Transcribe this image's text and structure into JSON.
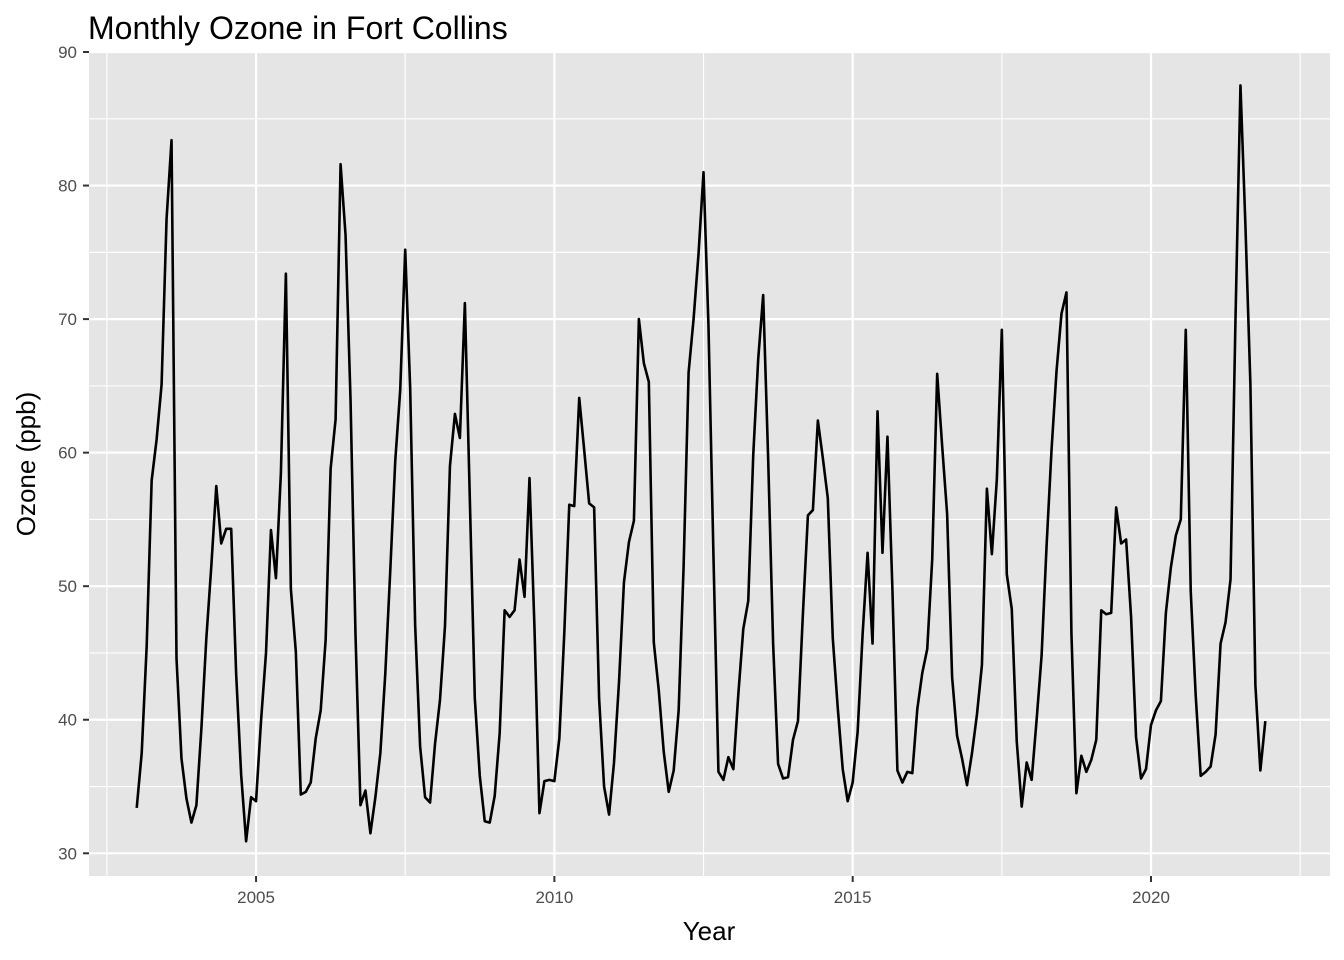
{
  "chart_data": {
    "type": "line",
    "title": "Monthly Ozone in Fort Collins",
    "xlabel": "Year",
    "ylabel": "Ozone (ppb)",
    "xlim": [
      2002.2,
      2023.0
    ],
    "ylim": [
      28.3,
      90.0
    ],
    "x_ticks": [
      2005,
      2010,
      2015,
      2020
    ],
    "y_ticks": [
      30,
      40,
      50,
      60,
      70,
      80,
      90
    ],
    "grid": true,
    "panel_color": "#e5e5e5",
    "line_color": "#000000",
    "series": [
      {
        "x_start": 2003.0,
        "x_step": 0.08333,
        "values": [
          33.4,
          37.5,
          45.5,
          57.9,
          61.0,
          65.1,
          77.5,
          83.4,
          44.6,
          37.1,
          34.1,
          32.3,
          33.6,
          39.3,
          46.1,
          51.5,
          57.5,
          53.2,
          54.3,
          54.3,
          43.4,
          35.9,
          30.9,
          34.2,
          33.9,
          39.9,
          45.0,
          54.2,
          50.6,
          58.5,
          73.4,
          49.8,
          45.1,
          34.4,
          34.6,
          35.3,
          38.6,
          40.7,
          46.0,
          58.8,
          62.5,
          81.6,
          76.3,
          64.0,
          46.4,
          33.6,
          34.7,
          31.5,
          34.2,
          37.5,
          43.5,
          51.2,
          59.4,
          64.7,
          75.2,
          64.8,
          47.1,
          38.0,
          34.2,
          33.8,
          38.2,
          41.5,
          47.0,
          59.0,
          62.9,
          61.1,
          71.2,
          56.5,
          41.6,
          35.8,
          32.4,
          32.3,
          34.3,
          39.0,
          48.2,
          47.7,
          48.2,
          52.0,
          49.2,
          58.1,
          46.9,
          33.0,
          35.4,
          35.5,
          35.4,
          38.6,
          46.5,
          56.1,
          56.0,
          64.1,
          60.2,
          56.2,
          55.9,
          41.6,
          35.0,
          32.9,
          36.8,
          42.8,
          50.3,
          53.3,
          54.9,
          70.0,
          66.7,
          65.3,
          45.8,
          42.2,
          37.6,
          34.6,
          36.2,
          40.7,
          51.5,
          66.0,
          70.0,
          74.9,
          81.0,
          69.5,
          52.3,
          36.1,
          35.5,
          37.2,
          36.3,
          41.9,
          46.8,
          48.9,
          59.8,
          67.0,
          71.8,
          59.6,
          45.7,
          36.7,
          35.6,
          35.7,
          38.5,
          39.9,
          48.0,
          55.3,
          55.7,
          62.4,
          59.6,
          56.6,
          46.1,
          40.9,
          36.3,
          33.9,
          35.3,
          39.1,
          46.4,
          52.5,
          45.7,
          63.1,
          52.5,
          61.2,
          49.7,
          36.2,
          35.3,
          36.1,
          36.0,
          40.8,
          43.5,
          45.3,
          52.0,
          65.9,
          60.5,
          55.4,
          43.2,
          38.8,
          37.1,
          35.1,
          37.5,
          40.4,
          44.1,
          57.3,
          52.4,
          58.0,
          69.2,
          50.9,
          48.3,
          38.4,
          33.5,
          36.8,
          35.5,
          40.0,
          44.8,
          53.0,
          60.2,
          66.1,
          70.4,
          72.0,
          46.5,
          34.5,
          37.3,
          36.1,
          37.0,
          38.5,
          48.2,
          47.9,
          48.0,
          55.9,
          53.2,
          53.5,
          47.7,
          38.7,
          35.6,
          36.3,
          39.6,
          40.7,
          41.4,
          48.0,
          51.4,
          53.8,
          55.0,
          69.2,
          49.6,
          41.8,
          35.8,
          36.1,
          36.5,
          38.9,
          45.7,
          47.3,
          50.5,
          70.0,
          87.5,
          77.0,
          65.1,
          42.6,
          36.2,
          39.9
        ]
      }
    ]
  }
}
